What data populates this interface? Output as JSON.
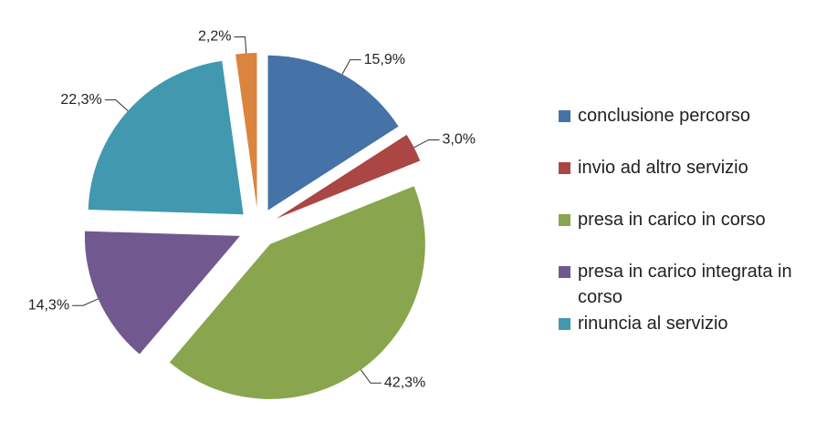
{
  "chart_data": {
    "type": "pie",
    "categories": [
      "conclusione percorso",
      "invio ad altro servizio",
      "presa in carico in corso",
      "presa in carico integrata in corso",
      "rinuncia al servizio",
      null
    ],
    "values": [
      15.9,
      3.0,
      42.3,
      14.3,
      22.3,
      2.2
    ],
    "value_labels": [
      "15,9%",
      "3,0%",
      "42,3%",
      "14,3%",
      "22,3%",
      "2,2%"
    ],
    "colors": [
      "#4572a7",
      "#aa4643",
      "#89a54e",
      "#71588f",
      "#4198af",
      "#db843d"
    ],
    "legend": "right"
  }
}
